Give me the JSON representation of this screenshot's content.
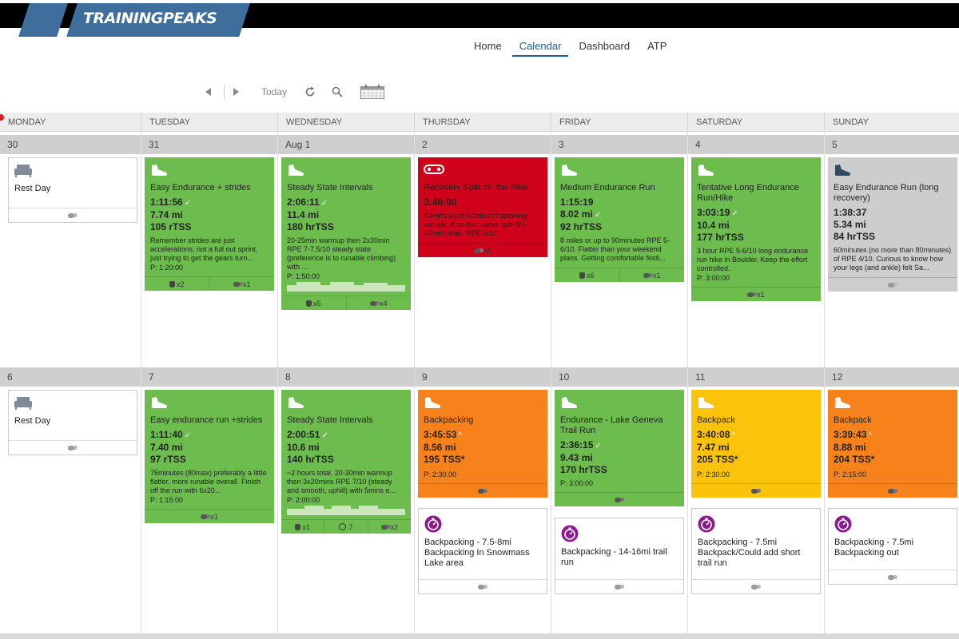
{
  "brand": {
    "name": "TRAININGPEAKS",
    "color": "#3d6e9c"
  },
  "nav": {
    "items": [
      "Home",
      "Calendar",
      "Dashboard",
      "ATP"
    ],
    "active": "Calendar"
  },
  "toolbar": {
    "today_label": "Today"
  },
  "days": [
    "MONDAY",
    "TUESDAY",
    "WEDNESDAY",
    "THURSDAY",
    "FRIDAY",
    "SATURDAY",
    "SUNDAY"
  ],
  "week1": {
    "dates": [
      "30",
      "31",
      "Aug 1",
      "2",
      "3",
      "4",
      "5"
    ],
    "mon": {
      "title": "Rest Day",
      "icon": "couch-icon"
    },
    "tue": {
      "title": "Easy Endurance + strides",
      "duration": "1:11:56",
      "distance": "7.74 mi",
      "tss": "105 rTSS",
      "desc": "Remember strides are just accelerations, not a full out sprint, just trying to get the gears turn...",
      "planned": "P: 1:20:00",
      "f1": "x2",
      "f2": "x1"
    },
    "wed": {
      "title": "Steady State Intervals",
      "duration": "2:06:11",
      "distance": "11.4 mi",
      "tss": "180 hrTSS",
      "desc": "20-25min warmup then 2x30min RPE 7-7.5/10 steady state (preference is to runable climbing) with ...",
      "planned": "P: 1:50:00",
      "f1": "x5",
      "f2": "x4"
    },
    "thu": {
      "title": "Recovery Spin on the Bike",
      "duration": "0:40:00",
      "desc": "40mins up to 60mins of spinning outside, if on the trainer spin 30-40mins max. RPE 4/10",
      "f1": "x1"
    },
    "fri": {
      "title": "Medium Endurance Run",
      "duration": "1:15:19",
      "distance": "8.02 mi",
      "tss": "92 hrTSS",
      "desc": "8 miles or up to 90minutes RPE 5-6/10. Flatter than your weekend plans. Getting comfortable findi...",
      "f1": "x6",
      "f2": "x1"
    },
    "sat": {
      "title": "Tentative Long Endurance Run/Hike",
      "duration": "3:03:19",
      "distance": "10.4 mi",
      "tss": "177 hrTSS",
      "desc": "3 hour RPE 5-6/10 long endurance run hike in Boulder. Keep the effort controlled.",
      "planned": "P: 3:00:00",
      "f1": "x1"
    },
    "sun": {
      "title": "Easy Endurance Run (long recovery)",
      "duration": "1:38:37",
      "distance": "5.34 mi",
      "tss": "84 hrTSS",
      "desc": "60minutes (no more than 80minutes) of RPE 4/10. Curious to know how your legs (and ankle) felt Sa..."
    }
  },
  "week2": {
    "dates": [
      "6",
      "7",
      "8",
      "9",
      "10",
      "11",
      "12"
    ],
    "mon": {
      "title": "Rest Day",
      "icon": "couch-icon"
    },
    "tue": {
      "title": "Easy endurance run +strides",
      "duration": "1:11:40",
      "distance": "7.40 mi",
      "tss": "97 rTSS",
      "desc": "75minutes (80max) preferably a little flatter, more runable overall. Finish off the run with 6x20...",
      "planned": "P: 1:15:00",
      "f1": "x1"
    },
    "wed": {
      "title": "Steady State Intervals",
      "duration": "2:00:51",
      "distance": "10.6 mi",
      "tss": "140 hrTSS",
      "desc": "~2 hours total. 20-30min warmup then 3x20mins RPE 7/10 (steady and smooth, uphill) with 5mins e...",
      "planned": "P: 2:00:00",
      "f1": "x1",
      "f2": "7",
      "f3": "x2"
    },
    "thu": {
      "title": "Backpacking",
      "duration": "3:45:53",
      "distance": "8.56 mi",
      "tss": "195 TSS*",
      "planned": "P: 2:30:00"
    },
    "thu_note": {
      "text": "Backpacking - 7.5-8mi Backpacking In Snowmass Lake area"
    },
    "fri": {
      "title": "Endurance - Lake Geneva Trail Run",
      "duration": "2:36:15",
      "distance": "9.43 mi",
      "tss": "170 hrTSS",
      "planned": "P: 3:00:00"
    },
    "fri_note": {
      "text": "Backpacking - 14-16mi trail run"
    },
    "sat": {
      "title": "Backpack",
      "duration": "3:40:08",
      "distance": "7.47 mi",
      "tss": "205 TSS*",
      "planned": "P: 2:30:00"
    },
    "sat_note": {
      "text": "Backpacking - 7.5mi Backpack/Could add short trail run"
    },
    "sun": {
      "title": "Backpack",
      "duration": "3:39:43",
      "distance": "8.88 mi",
      "tss": "204 TSS*",
      "planned": "P: 2:15:00"
    },
    "sun_note": {
      "text": "Backpacking - 7.5mi Backpacking out"
    }
  },
  "colors": {
    "green": "#6cbd4d",
    "red": "#d0021b",
    "orange": "#f7821b",
    "yellow": "#fbc30a",
    "gray": "#cdcdcd",
    "purple": "#8b1a8f"
  }
}
